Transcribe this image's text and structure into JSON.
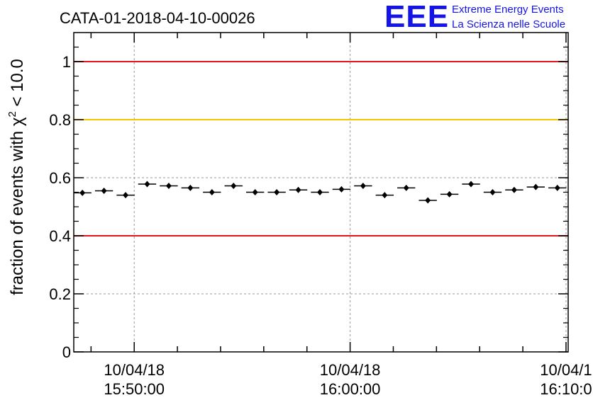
{
  "chart_data": {
    "type": "scatter",
    "title": "CATA-01-2018-04-10-00026",
    "ylabel": "fraction of events with χ² < 10.0",
    "ylabel_parts": {
      "pre": "fraction of events with ",
      "chi": "χ",
      "sup": "2",
      "post": " < 10.0"
    },
    "ylim": [
      0,
      1.1
    ],
    "yticks": [
      {
        "value": 0,
        "label": "0"
      },
      {
        "value": 0.2,
        "label": "0.2"
      },
      {
        "value": 0.4,
        "label": "0.4"
      },
      {
        "value": 0.6,
        "label": "0.6"
      },
      {
        "value": 0.8,
        "label": "0.8"
      },
      {
        "value": 1,
        "label": "1"
      }
    ],
    "x_range_minutes": [
      -2.8,
      20.1
    ],
    "xticks": [
      {
        "minute": 0,
        "date": "10/04/18",
        "time": "15:50:00"
      },
      {
        "minute": 10,
        "date": "10/04/18",
        "time": "16:00:00"
      },
      {
        "minute": 20,
        "date": "10/04/1",
        "time": "16:10:0"
      }
    ],
    "grid": true,
    "reference_lines": [
      {
        "value": 1.0,
        "color": "#e8141b"
      },
      {
        "value": 0.8,
        "color": "#f5c400"
      },
      {
        "value": 0.4,
        "color": "#e8141b"
      }
    ],
    "bin_width_minutes": 0.833,
    "points": [
      {
        "minute": -2.4,
        "y": 0.548
      },
      {
        "minute": -1.4,
        "y": 0.555
      },
      {
        "minute": -0.4,
        "y": 0.54
      },
      {
        "minute": 0.6,
        "y": 0.578
      },
      {
        "minute": 1.6,
        "y": 0.572
      },
      {
        "minute": 2.6,
        "y": 0.565
      },
      {
        "minute": 3.6,
        "y": 0.55
      },
      {
        "minute": 4.6,
        "y": 0.572
      },
      {
        "minute": 5.6,
        "y": 0.55
      },
      {
        "minute": 6.6,
        "y": 0.55
      },
      {
        "minute": 7.6,
        "y": 0.558
      },
      {
        "minute": 8.6,
        "y": 0.55
      },
      {
        "minute": 9.6,
        "y": 0.56
      },
      {
        "minute": 10.6,
        "y": 0.572
      },
      {
        "minute": 11.6,
        "y": 0.54
      },
      {
        "minute": 12.6,
        "y": 0.565
      },
      {
        "minute": 13.6,
        "y": 0.522
      },
      {
        "minute": 14.6,
        "y": 0.543
      },
      {
        "minute": 15.6,
        "y": 0.578
      },
      {
        "minute": 16.6,
        "y": 0.55
      },
      {
        "minute": 17.6,
        "y": 0.558
      },
      {
        "minute": 18.6,
        "y": 0.568
      },
      {
        "minute": 19.6,
        "y": 0.565
      }
    ]
  },
  "logo": {
    "mark": "EEE",
    "line1": "Extreme Energy Events",
    "line2": "La Scienza nelle Scuole",
    "color": "#1414e6"
  }
}
